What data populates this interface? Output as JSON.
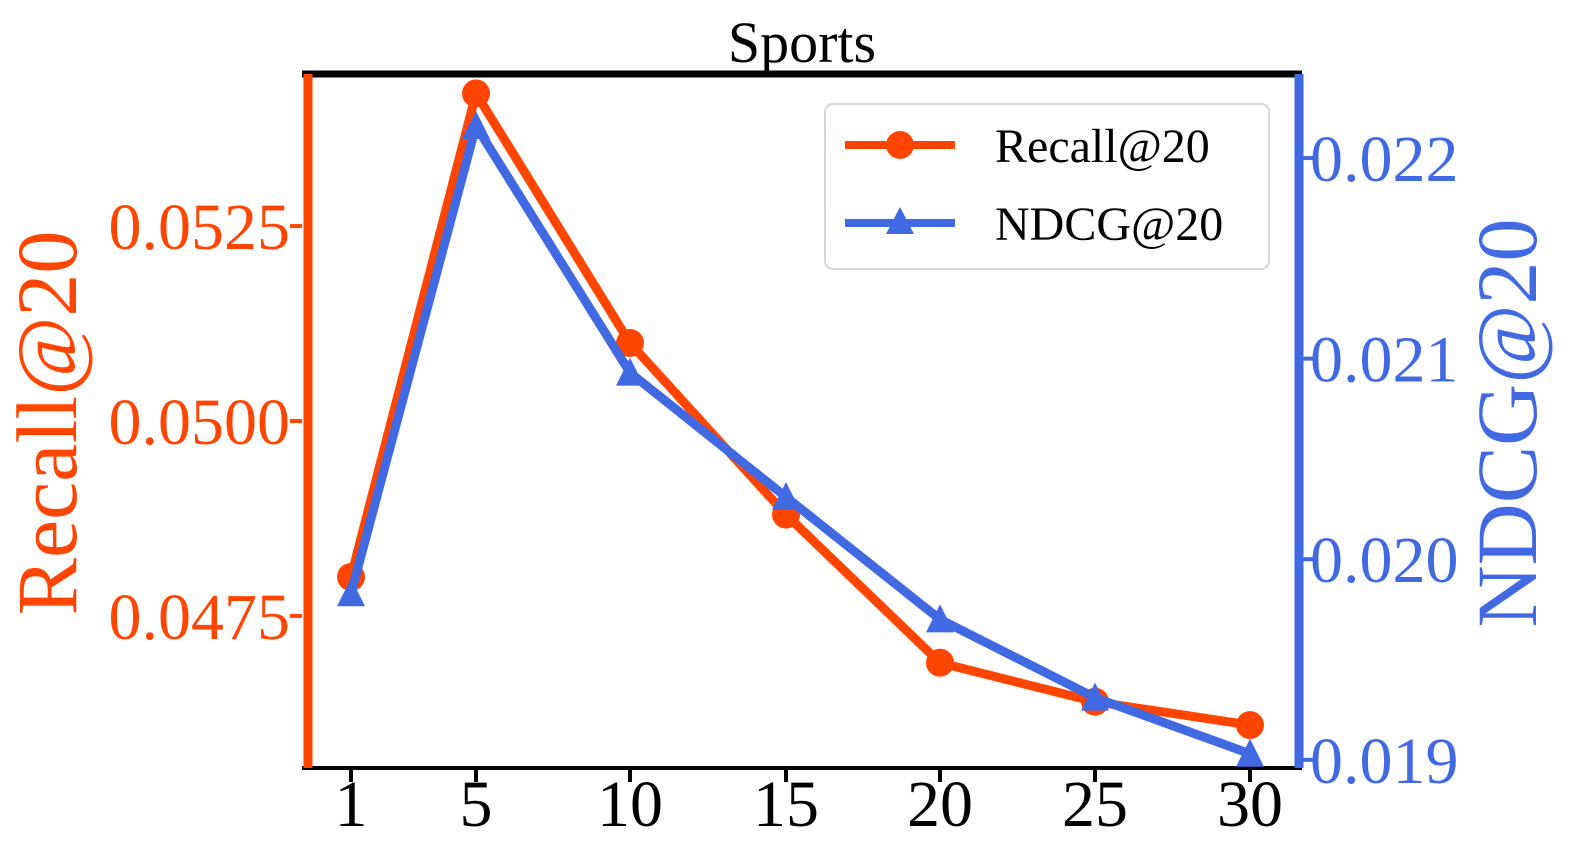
{
  "chart_data": {
    "type": "line",
    "title": "Sports",
    "categories": [
      "1",
      "5",
      "10",
      "15",
      "20",
      "25",
      "30"
    ],
    "x": [
      1,
      5,
      10,
      15,
      20,
      25,
      30
    ],
    "xlabel": "",
    "series": [
      {
        "name": "Recall@20",
        "axis": "left",
        "marker": "circle",
        "color": "#FF4500",
        "values": [
          0.048,
          0.0542,
          0.051,
          0.0488,
          0.0469,
          0.0464,
          0.0461
        ]
      },
      {
        "name": "NDCG@20",
        "axis": "right",
        "marker": "triangle",
        "color": "#4169E1",
        "values": [
          0.01983,
          0.02216,
          0.02093,
          0.02031,
          0.0197,
          0.01931,
          0.01903
        ]
      }
    ],
    "left_axis": {
      "label": "Recall@20",
      "color": "#FF4500",
      "ylim": [
        0.04555,
        0.05445
      ],
      "ticks": [
        "0.0475",
        "0.0500",
        "0.0525"
      ],
      "tick_values": [
        0.0475,
        0.05,
        0.0525
      ]
    },
    "right_axis": {
      "label": "NDCG@20",
      "color": "#4169E1",
      "ylim": [
        0.018959,
        0.022419
      ],
      "ticks": [
        "0.019",
        "0.020",
        "0.021",
        "0.022"
      ],
      "tick_values": [
        0.019,
        0.02,
        0.021,
        0.022
      ]
    },
    "legend": {
      "placement": "top-right",
      "entries": [
        "Recall@20",
        "NDCG@20"
      ]
    },
    "grid": false
  }
}
